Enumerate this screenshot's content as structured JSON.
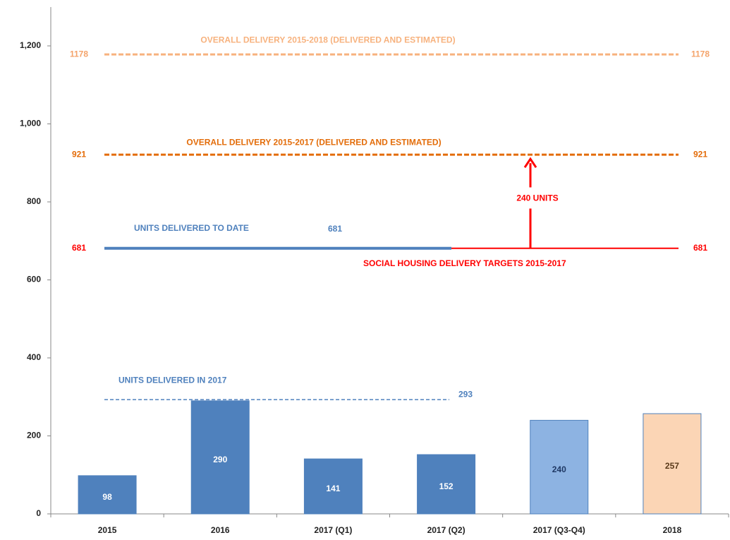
{
  "chart_data": {
    "type": "bar",
    "categories": [
      "2015",
      "2016",
      "2017 (Q1)",
      "2017 (Q2)",
      "2017 (Q3-Q4)",
      "2018"
    ],
    "values": [
      98,
      290,
      141,
      152,
      240,
      257
    ],
    "colors": [
      "#4f81bd",
      "#4f81bd",
      "#4f81bd",
      "#4f81bd",
      "#8db3e2",
      "#fbd5b5"
    ],
    "value_label_colors": [
      "#ffffff",
      "#ffffff",
      "#ffffff",
      "#ffffff",
      "#1f3864",
      "#5a3a1a"
    ],
    "ylim": [
      0,
      1200
    ],
    "yticks": [
      0,
      200,
      400,
      600,
      800,
      {
        "value": 1000,
        "label": "1,000"
      },
      {
        "value": 1200,
        "label": "1,200"
      }
    ],
    "reference_lines": [
      {
        "label": "OVERALL DELIVERY  2015-2018 (DELIVERED AND ESTIMATED)",
        "value": 1178,
        "color": "#f7b27e"
      },
      {
        "label": "OVERALL DELIVERY  2015-2017 (DELIVERED AND ESTIMATED)",
        "value": 921,
        "color": "#e36c09"
      },
      {
        "label": "UNITS DELIVERED TO DATE",
        "value": 681,
        "color": "#4f81bd"
      },
      {
        "label": "SOCIAL HOUSING DELIVERY TARGETS 2015-2017",
        "value": 681,
        "color": "#ff0000"
      },
      {
        "label": "UNITS DELIVERED  IN 2017",
        "value": 293,
        "color": "#4f81bd"
      }
    ],
    "annotation": {
      "label": "240 UNITS",
      "color": "#ff0000"
    }
  }
}
